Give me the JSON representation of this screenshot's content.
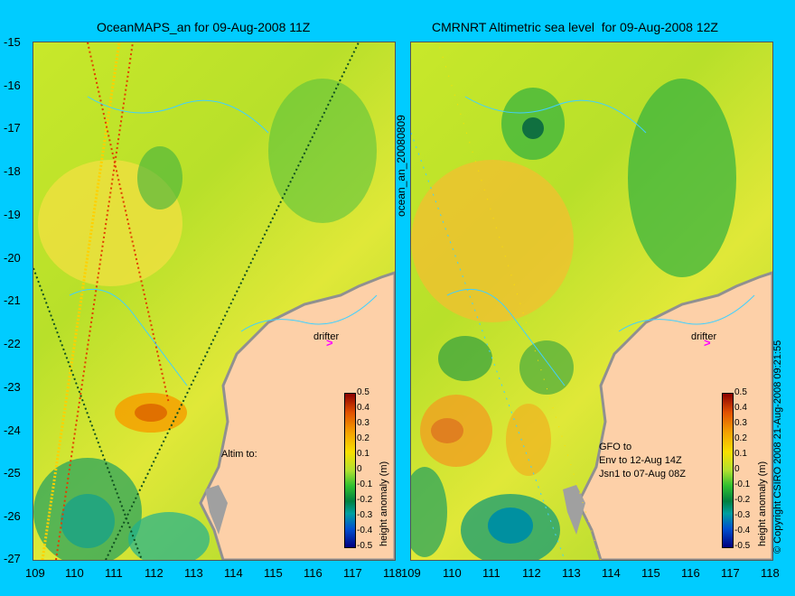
{
  "left_panel": {
    "title": "OceanMAPS_an for 09-Aug-2008 11Z",
    "side_label": "ocean_an_20080809",
    "drifter_label": "drifter",
    "altim_label": "Altim to:"
  },
  "right_panel": {
    "title": "CMRNRT Altimetric sea level  for 09-Aug-2008 12Z",
    "drifter_label": "drifter",
    "satellite_lines": [
      "GFO to",
      "Env to 12-Aug 14Z",
      "Jsn1 to 07-Aug 08Z"
    ],
    "copyright": "© Copyright CSIRO 2008   21-Aug-2008 09:21:55"
  },
  "y_ticks": [
    "-15",
    "-16",
    "-17",
    "-18",
    "-19",
    "-20",
    "-21",
    "-22",
    "-23",
    "-24",
    "-25",
    "-26",
    "-27"
  ],
  "x_ticks": [
    "109",
    "110",
    "111",
    "112",
    "113",
    "114",
    "115",
    "116",
    "117",
    "118"
  ],
  "colorbar": {
    "label": "height anomaly (m)",
    "ticks": [
      "0.5",
      "0.4",
      "0.3",
      "0.2",
      "0.1",
      "0",
      "-0.1",
      "-0.2",
      "-0.3",
      "-0.4",
      "-0.5"
    ],
    "colors": [
      "#8b0000",
      "#e05000",
      "#f4a000",
      "#f8e000",
      "#b0e030",
      "#30c030",
      "#008040",
      "#00a0a0",
      "#0050d0",
      "#000080"
    ]
  },
  "colors": {
    "background": "#00ccff",
    "land": "#fdd0a8",
    "coast": "#a0a0a0",
    "drifter": "#ff00ff",
    "contour": "#40d0ff"
  }
}
